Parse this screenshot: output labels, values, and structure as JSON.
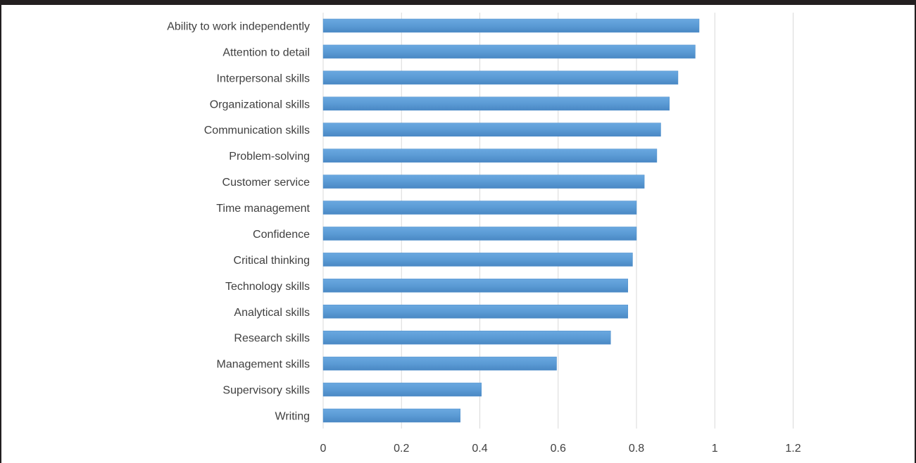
{
  "chart_data": {
    "type": "bar",
    "orientation": "horizontal",
    "categories": [
      "Ability to work independently",
      "Attention to detail",
      "Interpersonal skills",
      "Organizational skills",
      "Communication skills",
      "Problem-solving",
      "Customer service",
      "Time management",
      "Confidence",
      "Critical thinking",
      "Technology skills",
      "Analytical skills",
      "Research skills",
      "Management skills",
      "Supervisory skills",
      "Writing"
    ],
    "values": [
      0.96,
      0.95,
      0.906,
      0.884,
      0.862,
      0.852,
      0.82,
      0.8,
      0.8,
      0.79,
      0.778,
      0.778,
      0.734,
      0.596,
      0.404,
      0.35
    ],
    "title": "",
    "xlabel": "",
    "ylabel": "",
    "xlim": [
      0,
      1.2
    ],
    "xticks": [
      0,
      0.2,
      0.4,
      0.6,
      0.8,
      1,
      1.2
    ],
    "xtick_labels": [
      "0",
      "0.2",
      "0.4",
      "0.6",
      "0.8",
      "1",
      "1.2"
    ],
    "grid": "vertical",
    "legend": "none",
    "bar_color": "#5b9bd5",
    "gridline_color": "#d9d9d9"
  }
}
